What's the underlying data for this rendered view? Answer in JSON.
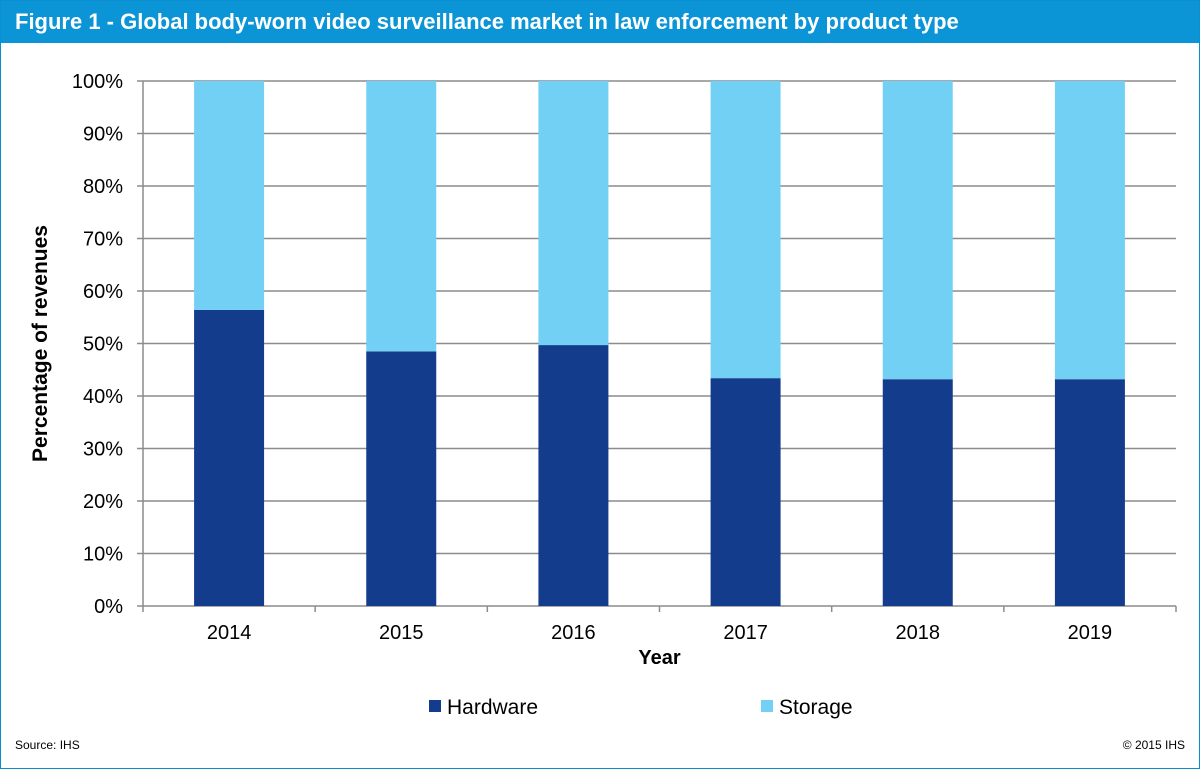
{
  "title": "Figure 1 - Global body-worn video surveillance market in law enforcement by product type",
  "footer": {
    "source": "Source: IHS",
    "copyright": "© 2015 IHS"
  },
  "chart_data": {
    "type": "bar",
    "stacked": true,
    "categories": [
      "2014",
      "2015",
      "2016",
      "2017",
      "2018",
      "2019"
    ],
    "series": [
      {
        "name": "Hardware",
        "color": "#133d8c",
        "values": [
          56.4,
          48.5,
          49.7,
          43.4,
          43.2,
          43.2
        ]
      },
      {
        "name": "Storage",
        "color": "#72d0f5",
        "values": [
          43.6,
          51.5,
          50.3,
          56.6,
          56.8,
          56.8
        ]
      }
    ],
    "xlabel": "Year",
    "ylabel": "Percentage of revenues",
    "ylim": [
      0,
      100
    ],
    "yticks": [
      "0%",
      "10%",
      "20%",
      "30%",
      "40%",
      "50%",
      "60%",
      "70%",
      "80%",
      "90%",
      "100%"
    ],
    "grid": true,
    "legend": "bottom"
  }
}
